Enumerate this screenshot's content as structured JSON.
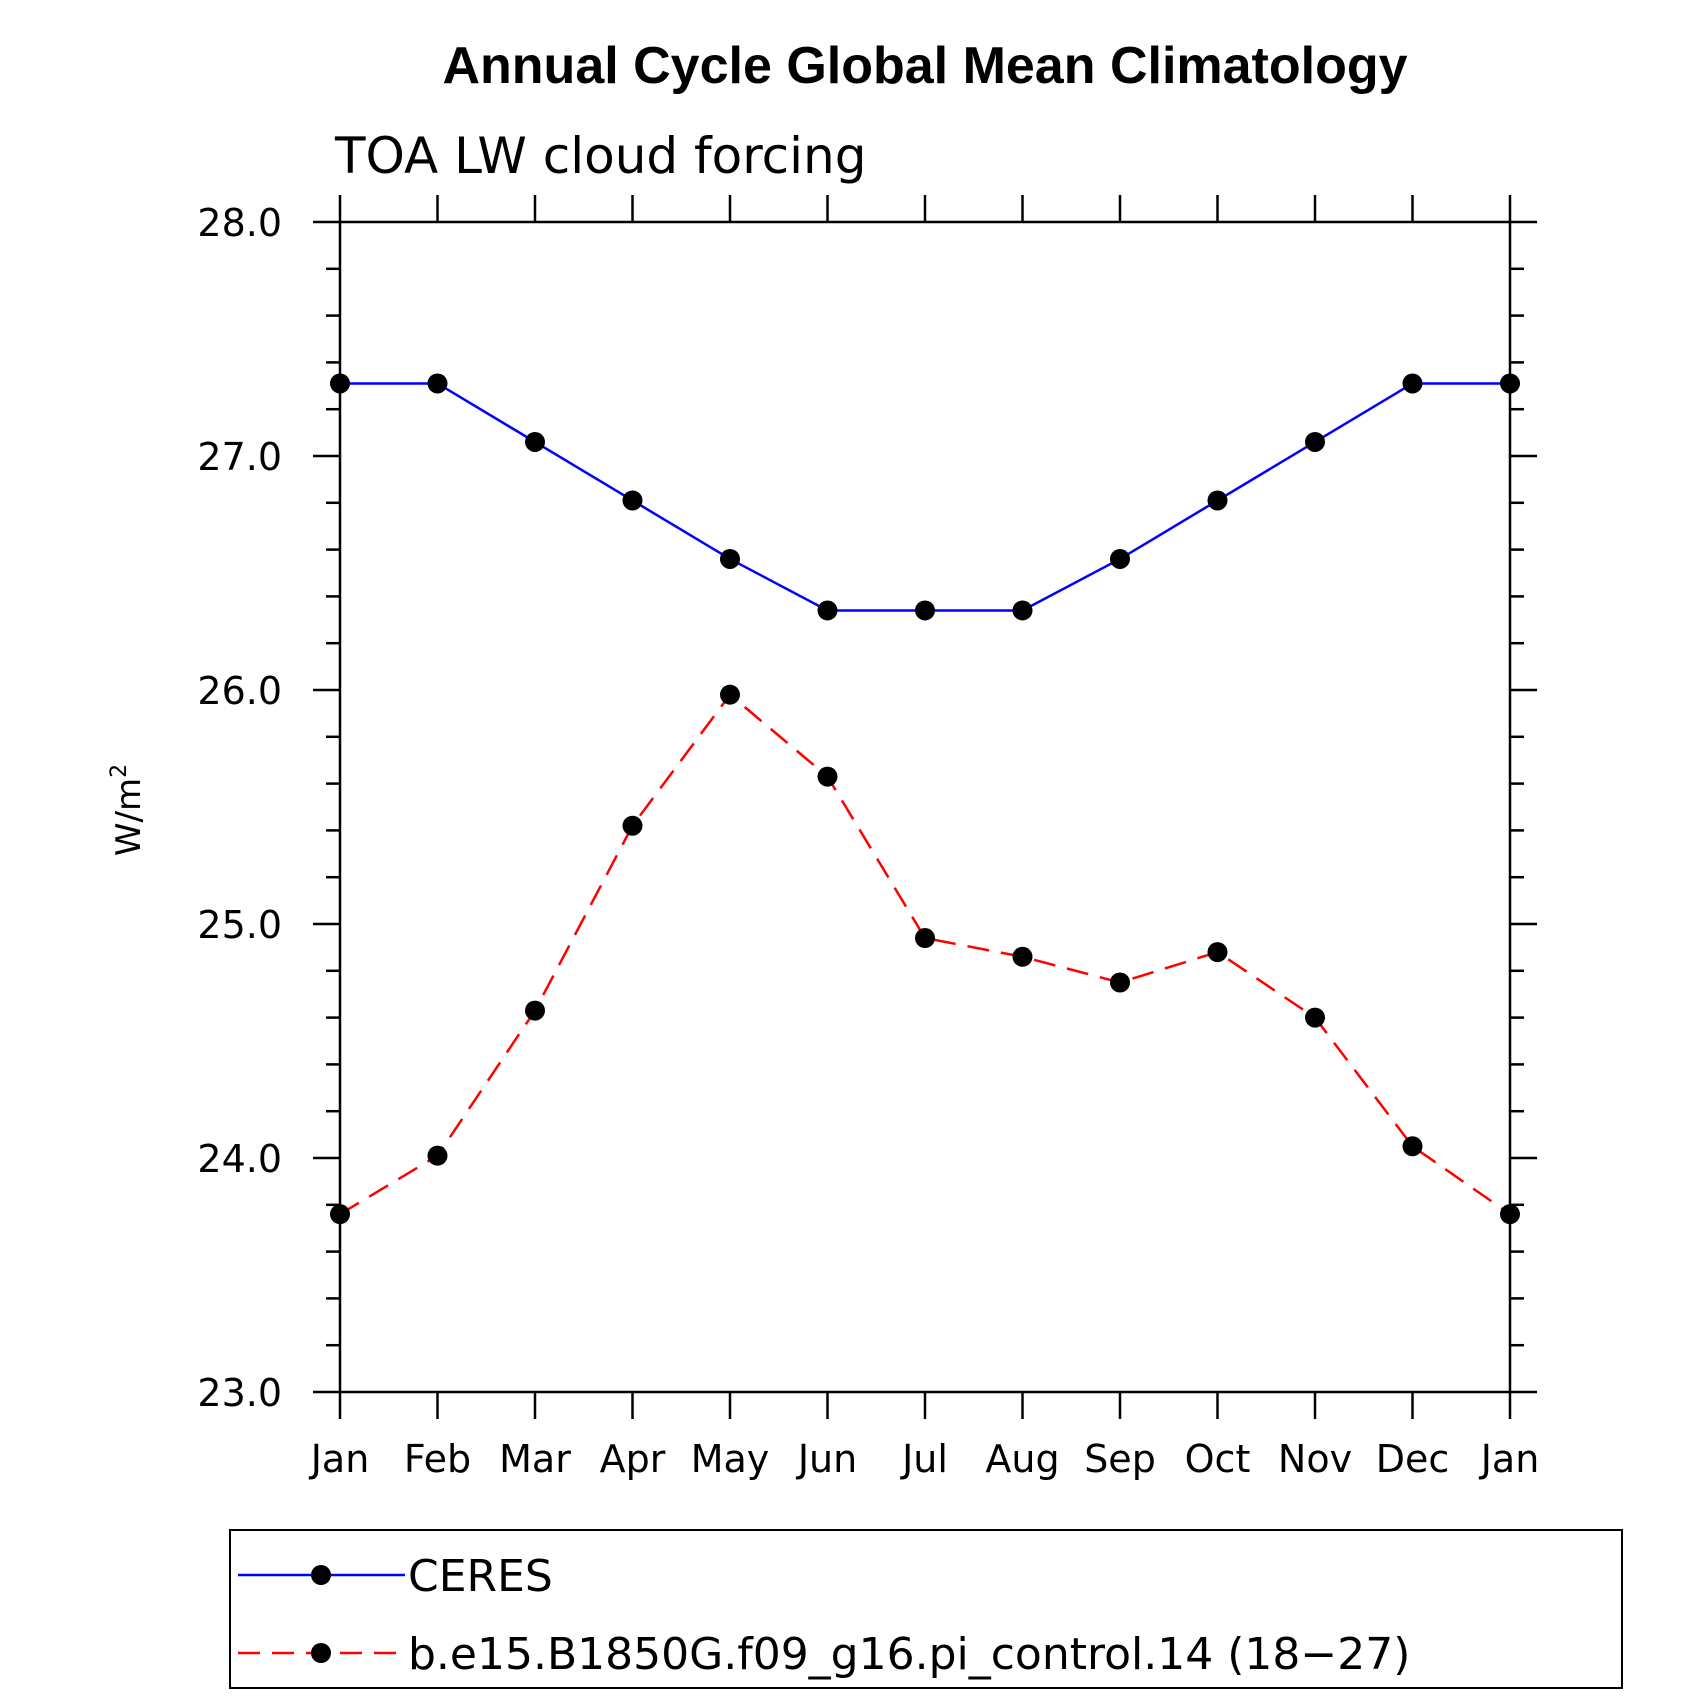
{
  "chart_data": {
    "type": "line",
    "title": "Annual Cycle Global Mean Climatology",
    "subtitle": "TOA LW cloud forcing",
    "ylabel_base": "W/m",
    "ylabel_sup": "2",
    "xlabel": "",
    "categories": [
      "Jan",
      "Feb",
      "Mar",
      "Apr",
      "May",
      "Jun",
      "Jul",
      "Aug",
      "Sep",
      "Oct",
      "Nov",
      "Dec",
      "Jan"
    ],
    "ylim": [
      23.0,
      28.0
    ],
    "yticks": [
      "23.0",
      "24.0",
      "25.0",
      "26.0",
      "27.0",
      "28.0"
    ],
    "grid": false,
    "legend_position": "bottom",
    "series": [
      {
        "name": "CERES",
        "color": "#0000ff",
        "dash": "solid",
        "values": [
          27.31,
          27.31,
          27.06,
          26.81,
          26.56,
          26.34,
          26.34,
          26.34,
          26.56,
          26.81,
          27.06,
          27.31,
          27.31
        ]
      },
      {
        "name": "b.e15.B1850G.f09_g16.pi_control.14 (18−27)",
        "color": "#ff0000",
        "dash": "dashed",
        "values": [
          23.76,
          24.01,
          24.63,
          25.42,
          25.98,
          25.63,
          24.94,
          24.86,
          24.75,
          24.88,
          24.6,
          24.05,
          23.76
        ]
      }
    ]
  }
}
